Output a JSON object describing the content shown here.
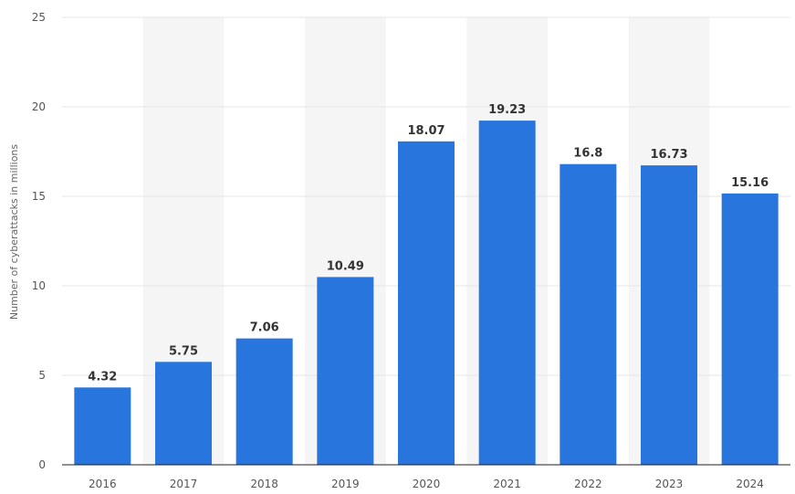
{
  "chart_data": {
    "type": "bar",
    "categories": [
      "2016",
      "2017",
      "2018",
      "2019",
      "2020",
      "2021",
      "2022",
      "2023",
      "2024"
    ],
    "values": [
      4.32,
      5.75,
      7.06,
      10.49,
      18.07,
      19.23,
      16.8,
      16.73,
      15.16
    ],
    "value_labels": [
      "4.32",
      "5.75",
      "7.06",
      "10.49",
      "18.07",
      "19.23",
      "16.8",
      "16.73",
      "15.16"
    ],
    "title": "",
    "xlabel": "",
    "ylabel": "Number of cyberattacks in millions",
    "ylim": [
      0,
      25
    ],
    "yticks": [
      "0",
      "5",
      "10",
      "15",
      "20",
      "25"
    ],
    "grid": true,
    "legend": "none",
    "colors": {
      "bar": "#2875dd",
      "band": "#f5f5f5",
      "grid": "#e5e5e5",
      "axis": "#222222"
    }
  }
}
